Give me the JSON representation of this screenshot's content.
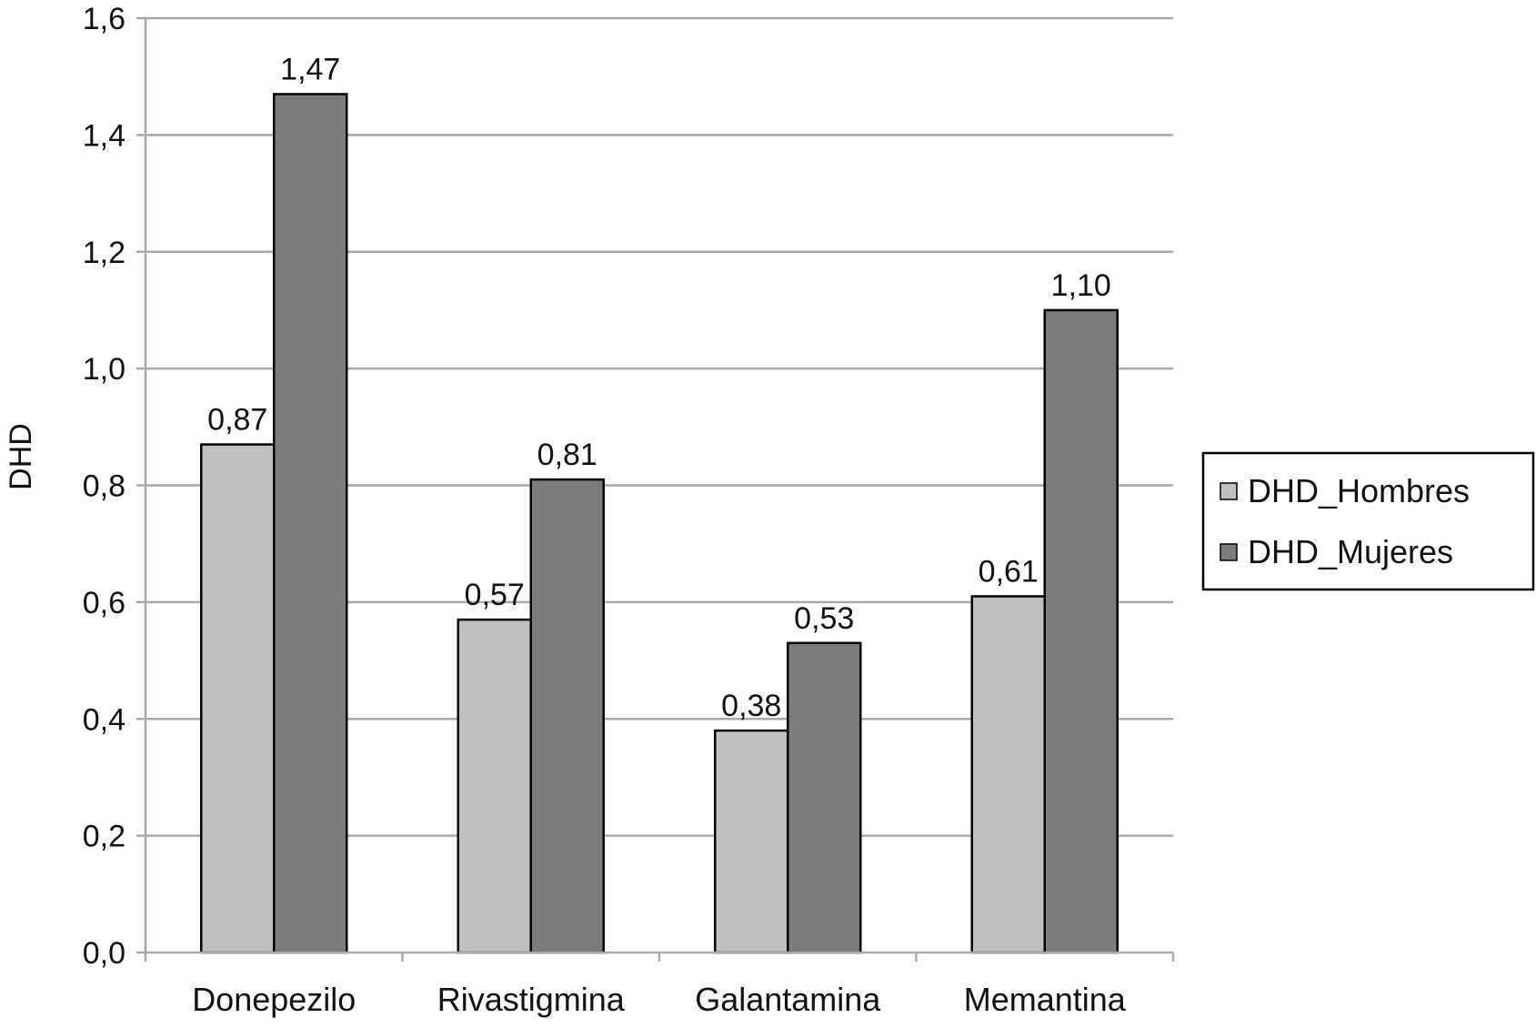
{
  "chart_data": {
    "type": "bar",
    "title": "",
    "xlabel": "",
    "ylabel": "DHD",
    "ylim": [
      0,
      1.6
    ],
    "yticks": [
      "0,0",
      "0,2",
      "0,4",
      "0,6",
      "0,8",
      "1,0",
      "1,2",
      "1,4",
      "1,6"
    ],
    "grid": true,
    "legend_position": "right",
    "categories": [
      "Donepezilo",
      "Rivastigmina",
      "Galantamina",
      "Memantina"
    ],
    "series": [
      {
        "name": "DHD_Hombres",
        "color": "#bfc0c2",
        "values": [
          0.87,
          0.57,
          0.38,
          0.61
        ],
        "labels": [
          "0,87",
          "0,57",
          "0,38",
          "0,61"
        ]
      },
      {
        "name": "DHD_Mujeres",
        "color": "#7a7c7d",
        "values": [
          1.47,
          0.81,
          0.53,
          1.1
        ],
        "labels": [
          "1,47",
          "0,81",
          "0,53",
          "1,10"
        ]
      }
    ]
  }
}
